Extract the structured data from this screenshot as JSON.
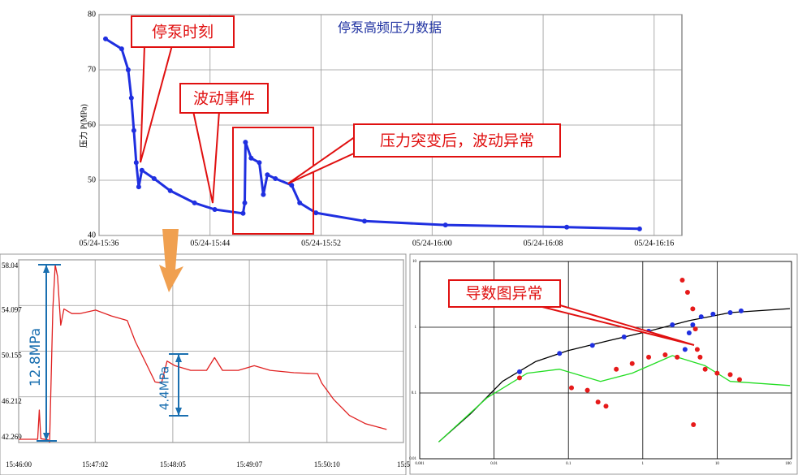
{
  "chart_data": [
    {
      "type": "line",
      "title": "停泵高频压力数据",
      "y_label": "压力 P(MPa)",
      "mode": "lines+markers",
      "x": [
        936.47,
        937.63,
        938.1,
        938.33,
        938.51,
        938.68,
        938.86,
        939.09,
        939.97,
        941.13,
        942.88,
        944.34,
        946.38,
        946.5,
        946.55,
        946.96,
        947.55,
        947.84,
        948.13,
        948.71,
        949.88,
        950.46,
        951.63,
        955.13,
        960.96,
        969.7,
        974.95
      ],
      "series": [
        {
          "color": "#1f2fe0",
          "values": [
            75.6,
            73.8,
            70,
            64.9,
            59,
            53.2,
            48.8,
            51.8,
            50.3,
            48.1,
            45.9,
            44.7,
            44.0,
            45.9,
            56.9,
            54,
            53.2,
            47.4,
            51,
            50.3,
            49.1,
            45.9,
            44.1,
            42.6,
            41.9,
            41.5,
            41.2
          ]
        }
      ],
      "xlim": [
        936,
        978
      ],
      "ylim": [
        40,
        80
      ],
      "xticks": [
        {
          "value": 936,
          "label": "05/24-15:36"
        },
        {
          "value": 944,
          "label": "05/24-15:44"
        },
        {
          "value": 952,
          "label": "05/24-15:52"
        },
        {
          "value": 960,
          "label": "05/24-16:00"
        },
        {
          "value": 968,
          "label": "05/24-16:08"
        },
        {
          "value": 976,
          "label": "05/24-16:16"
        }
      ],
      "yticks": [
        40,
        50,
        60,
        70,
        80
      ],
      "grid": true,
      "annotations": [
        "停泵时刻",
        "波动事件",
        "压力突变后，波动异常"
      ]
    },
    {
      "type": "line",
      "mode": "lines",
      "x": [
        0,
        15.4,
        16.7,
        18,
        23.8,
        25.1,
        27.7,
        29.6,
        31.5,
        34.1,
        36.7,
        43.1,
        49.5,
        62.4,
        75.2,
        88.1,
        94.5,
        104.2,
        110.6,
        115.8,
        120.3,
        126.7,
        139.5,
        152.4,
        158.8,
        165.3,
        178.1,
        191,
        203.9,
        223.2,
        242.4,
        245.7,
        255.3,
        268.2,
        281,
        298.4
      ],
      "series": [
        {
          "color": "#e02020",
          "values": [
            42.55,
            42.55,
            45.07,
            42.6,
            42.5,
            42.3,
            53.8,
            57.6,
            56.6,
            52.4,
            53.8,
            53.4,
            53.4,
            53.7,
            53.2,
            52.8,
            51.0,
            48.9,
            47.5,
            47.4,
            49.3,
            48.9,
            48.5,
            48.5,
            49.6,
            48.5,
            48.5,
            48.9,
            48.5,
            48.3,
            48.2,
            47.4,
            46.0,
            44.6,
            43.9,
            43.4
          ]
        }
      ],
      "xlim": [
        0,
        312
      ],
      "ylim": [
        42.269,
        58.04
      ],
      "xticks": [
        {
          "value": 0,
          "label": "15:46:00"
        },
        {
          "value": 62,
          "label": "15:47:02"
        },
        {
          "value": 125,
          "label": "15:48:05"
        },
        {
          "value": 187,
          "label": "15:49:07"
        },
        {
          "value": 250,
          "label": "15:50:10"
        },
        {
          "value": 312,
          "label": "15:5"
        }
      ],
      "yticks": [
        42.269,
        46.212,
        50.155,
        54.097,
        58.04
      ],
      "grid": true,
      "annotations": [
        "12.8MPa",
        "4.4MPa"
      ]
    },
    {
      "type": "scatter",
      "xlog": true,
      "ylog": true,
      "xlim": [
        0.001,
        100
      ],
      "ylim": [
        0.01,
        10
      ],
      "xticks": [
        0.001,
        0.01,
        0.1,
        1,
        10,
        100
      ],
      "yticks": [
        0.01,
        0.1,
        1,
        10
      ],
      "grid": true,
      "series": [
        {
          "color": "#000000",
          "mode": "lines",
          "x": [
            0.0018,
            0.0048,
            0.013,
            0.036,
            0.098,
            0.34,
            1.2,
            4.2,
            15,
            95
          ],
          "values": [
            0.018,
            0.048,
            0.15,
            0.3,
            0.44,
            0.62,
            0.87,
            1.26,
            1.67,
            1.92
          ]
        },
        {
          "color": "#22dd22",
          "mode": "lines",
          "x": [
            0.0018,
            0.008,
            0.028,
            0.076,
            0.27,
            0.72,
            2.5,
            6.9,
            15,
            95
          ],
          "values": [
            0.018,
            0.084,
            0.2,
            0.23,
            0.15,
            0.2,
            0.37,
            0.26,
            0.15,
            0.13
          ]
        },
        {
          "color": "#1f2fe0",
          "mode": "markers",
          "x": [
            0.022,
            0.076,
            0.21,
            0.56,
            1.2,
            2.5,
            3.7,
            4.2,
            4.7,
            6.1,
            8.8,
            15,
            21
          ],
          "values": [
            0.21,
            0.4,
            0.53,
            0.71,
            0.87,
            1.09,
            0.46,
            0.82,
            1.09,
            1.44,
            1.58,
            1.67,
            1.77
          ]
        },
        {
          "color": "#e61a1a",
          "mode": "markers",
          "x": [
            0.022,
            0.11,
            0.18,
            0.25,
            0.32,
            0.44,
            0.72,
            1.2,
            2.0,
            2.9,
            3.4,
            4.0,
            4.7,
            5.1,
            5.4,
            5.9,
            6.9,
            10,
            15,
            20,
            4.8
          ],
          "values": [
            0.17,
            0.12,
            0.11,
            0.073,
            0.063,
            0.23,
            0.28,
            0.35,
            0.38,
            0.35,
            5.2,
            3.4,
            1.9,
            0.94,
            0.46,
            0.35,
            0.23,
            0.2,
            0.19,
            0.16,
            0.033
          ]
        }
      ],
      "annotations": [
        "导数图异常"
      ]
    }
  ]
}
